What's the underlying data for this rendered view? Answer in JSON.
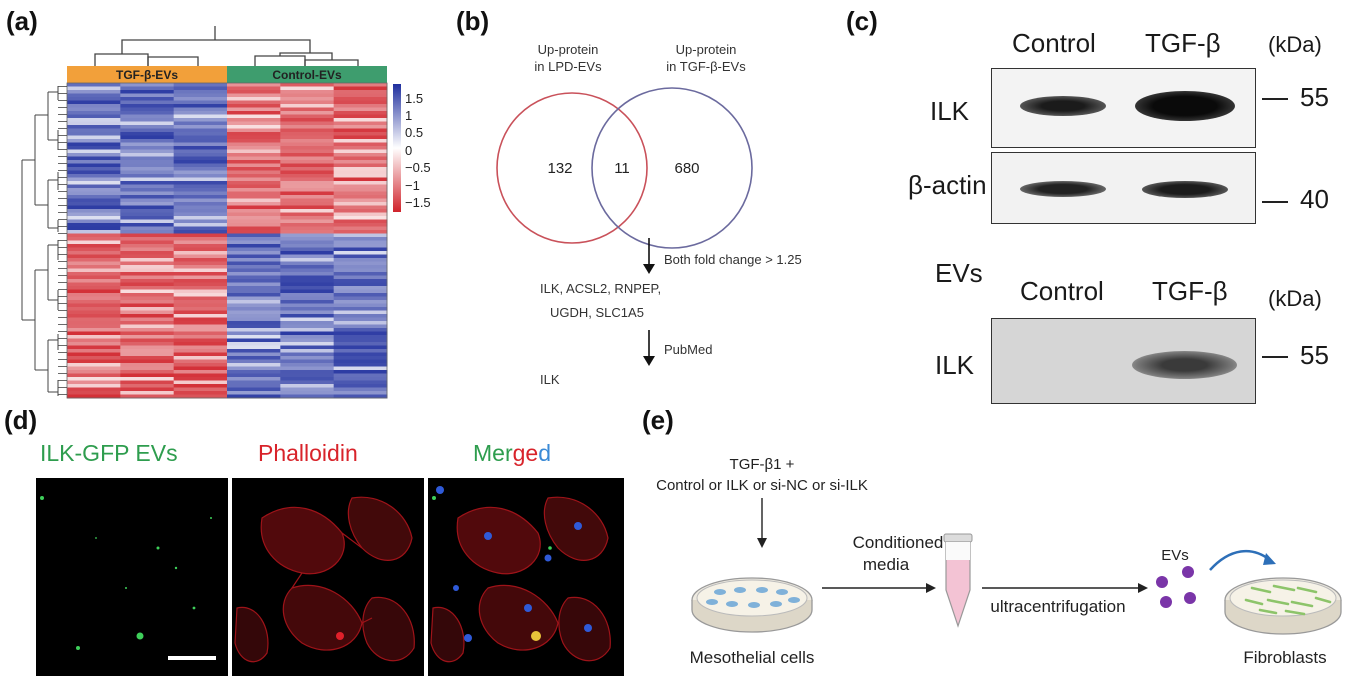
{
  "panels": {
    "a": {
      "label": "(a)",
      "groups": [
        "TGF-β-EVs",
        "Control-EVs"
      ],
      "group_colors": [
        "#f2a03a",
        "#3e9d6e"
      ],
      "colorbar_ticks": [
        "1.5",
        "1",
        "0.5",
        "0",
        "−0.5",
        "−1",
        "−1.5"
      ],
      "colorbar_colors": [
        "#1f2f9e",
        "#ffffff",
        "#d0232b"
      ]
    },
    "b": {
      "label": "(b)",
      "set_left": [
        "Up-protein",
        "in LPD-EVs"
      ],
      "set_right": [
        "Up-protein",
        "in TGF-β-EVs"
      ],
      "count_left": "132",
      "count_overlap": "11",
      "count_right": "680",
      "circle_colors": [
        "#c9515a",
        "#6b6a9e"
      ],
      "step1": "Both fold change > 1.25",
      "candidates": [
        "ILK, ACSL2, RNPEP,",
        "UGDH, SLC1A5"
      ],
      "step2": "PubMed",
      "final": "ILK"
    },
    "c": {
      "label": "(c)",
      "top": {
        "col_control": "Control",
        "col_tgf": "TGF-β",
        "unit": "(kDa)",
        "row1": "ILK",
        "row1_marker": "55",
        "row2": "β-actin",
        "row2_marker": "40"
      },
      "bottom": {
        "section": "EVs",
        "col_control": "Control",
        "col_tgf": "TGF-β",
        "unit": "(kDa)",
        "row1": "ILK",
        "row1_marker": "55"
      }
    },
    "d": {
      "label": "(d)",
      "titles": [
        "ILK-GFP EVs",
        "Phalloidin"
      ],
      "title_colors": [
        "#2e9d4e",
        "#d8232a"
      ],
      "merged": [
        "Mer",
        "g",
        "e",
        "d"
      ],
      "merged_colors": [
        "#2e9d4e",
        "#d8232a",
        "#d8232a",
        "#3a8ad6"
      ]
    },
    "e": {
      "label": "(e)",
      "treatment_line1": "TGF-β1 +",
      "treatment_line2": "Control or ILK or si-NC or si-ILK",
      "step_media": [
        "Conditioned",
        "media"
      ],
      "step_spin": "ultracentrifugation",
      "evs": "EVs",
      "source_cells": "Mesothelial cells",
      "target_cells": "Fibroblasts"
    }
  }
}
